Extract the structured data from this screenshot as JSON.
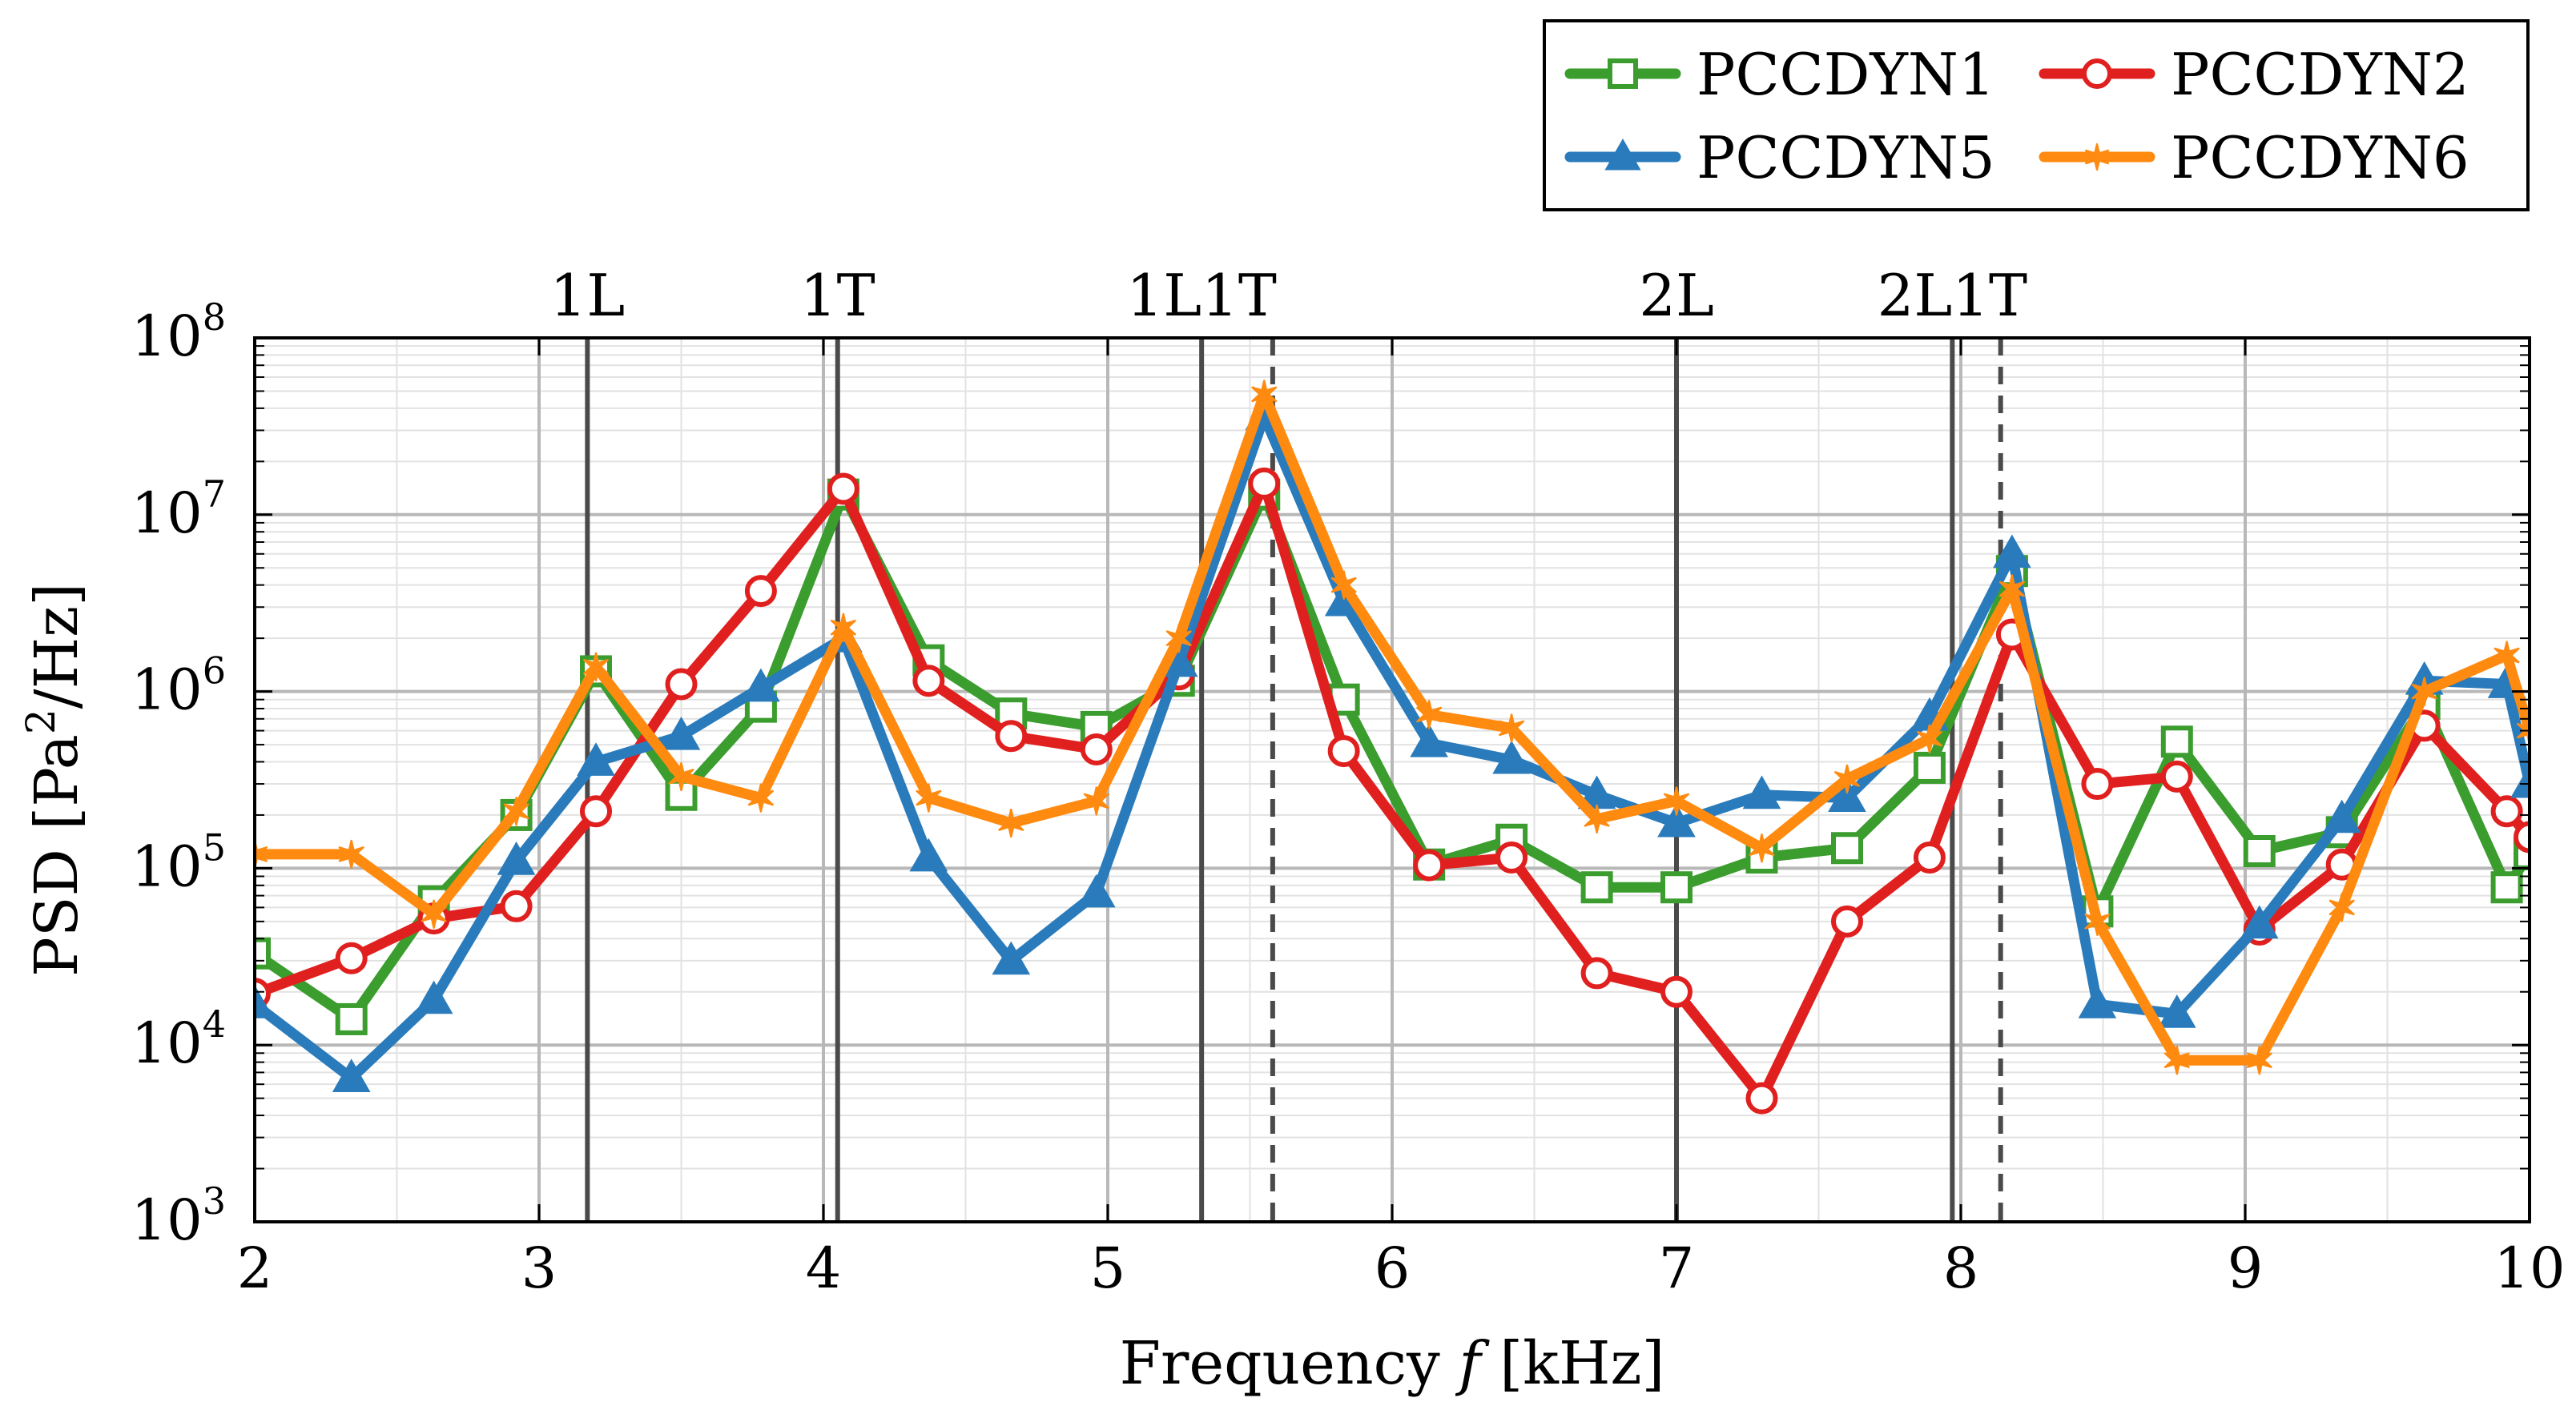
{
  "chart_data": {
    "type": "line",
    "title": "",
    "xlabel_prefix": "Frequency ",
    "xlabel_var": "f",
    "xlabel_suffix": " [kHz]",
    "ylabel_prefix": "PSD [Pa",
    "ylabel_sup": "2",
    "ylabel_suffix": "/Hz]",
    "xlim": [
      2,
      10
    ],
    "ylim": [
      1000,
      100000000
    ],
    "yscale": "log",
    "grid": true,
    "legend_position": "top-right, above plot",
    "x_ticks": [
      {
        "value": 2,
        "label": "2"
      },
      {
        "value": 3,
        "label": "3"
      },
      {
        "value": 4,
        "label": "4"
      },
      {
        "value": 5,
        "label": "5"
      },
      {
        "value": 6,
        "label": "6"
      },
      {
        "value": 7,
        "label": "7"
      },
      {
        "value": 8,
        "label": "8"
      },
      {
        "value": 9,
        "label": "9"
      },
      {
        "value": 10,
        "label": "10"
      }
    ],
    "y_ticks": [
      {
        "exp": 3,
        "base": "10",
        "sup": "3"
      },
      {
        "exp": 4,
        "base": "10",
        "sup": "4"
      },
      {
        "exp": 5,
        "base": "10",
        "sup": "5"
      },
      {
        "exp": 6,
        "base": "10",
        "sup": "6"
      },
      {
        "exp": 7,
        "base": "10",
        "sup": "7"
      },
      {
        "exp": 8,
        "base": "10",
        "sup": "8"
      }
    ],
    "mode_lines": [
      {
        "label": "1L",
        "x": 3.17
      },
      {
        "label": "1T",
        "x": 4.05
      },
      {
        "label": "1L1T",
        "x": 5.33
      },
      {
        "label": "2L",
        "x": 7.0
      },
      {
        "label": "2L1T",
        "x": 7.97
      }
    ],
    "dashed_lines": [
      5.58,
      8.14
    ],
    "x": [
      2.0,
      2.34,
      2.63,
      2.92,
      3.2,
      3.5,
      3.78,
      4.07,
      4.37,
      4.66,
      4.96,
      5.25,
      5.55,
      5.83,
      6.13,
      6.42,
      6.72,
      7.0,
      7.3,
      7.6,
      7.89,
      8.18,
      8.48,
      8.76,
      9.05,
      9.34,
      9.63,
      9.92,
      10.0
    ],
    "series": [
      {
        "name": "PCCDYN1",
        "color": "#3a9d2e",
        "marker": "square",
        "values": [
          33000,
          14000,
          65000,
          200000,
          1300000,
          260000,
          820000,
          13000000,
          1500000,
          750000,
          630000,
          1150000,
          13000000,
          900000,
          105000,
          145000,
          78000,
          78000,
          115000,
          130000,
          370000,
          4800000,
          57000,
          520000,
          125000,
          160000,
          850000,
          78000,
          120000
        ]
      },
      {
        "name": "PCCDYN2",
        "color": "#e0201f",
        "marker": "circle",
        "values": [
          19500,
          31000,
          52000,
          61000,
          210000,
          1100000,
          3700000,
          14000000,
          1150000,
          560000,
          470000,
          1250000,
          15000000,
          460000,
          104000,
          115000,
          25500,
          20000,
          5000,
          50000,
          115000,
          2100000,
          300000,
          330000,
          45000,
          105000,
          640000,
          210000,
          150000
        ]
      },
      {
        "name": "PCCDYN5",
        "color": "#2a7bbb",
        "marker": "triangle",
        "values": [
          17000,
          6500,
          18000,
          110000,
          400000,
          560000,
          1050000,
          2000000,
          115000,
          30000,
          72000,
          1450000,
          36000000,
          3200000,
          510000,
          410000,
          260000,
          180000,
          260000,
          250000,
          720000,
          6000000,
          17000,
          15000,
          48000,
          190000,
          1150000,
          1100000,
          300000
        ]
      },
      {
        "name": "PCCDYN6",
        "color": "#ff8a10",
        "marker": "star",
        "values": [
          120000,
          120000,
          55000,
          210000,
          1380000,
          330000,
          250000,
          2300000,
          250000,
          180000,
          240000,
          2000000,
          48000000,
          4000000,
          740000,
          620000,
          190000,
          240000,
          130000,
          320000,
          540000,
          3800000,
          50000,
          8200,
          8200,
          60000,
          1000000,
          1600000,
          600000
        ]
      }
    ]
  }
}
